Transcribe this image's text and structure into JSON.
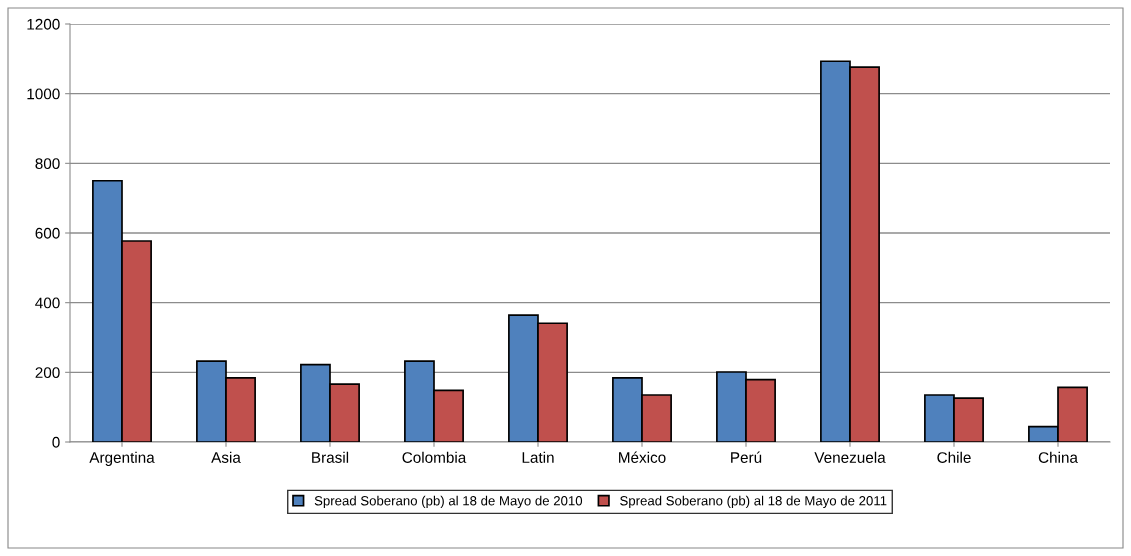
{
  "chart_data": {
    "type": "bar",
    "categories": [
      "Argentina",
      "Asia",
      "Brasil",
      "Colombia",
      "Latin",
      "México",
      "Perú",
      "Venezuela",
      "Chile",
      "China"
    ],
    "series": [
      {
        "name": "Spread Soberano (pb) al 18 de Mayo de 2010",
        "color": "#4f81bd",
        "values": [
          750,
          232,
          222,
          232,
          364,
          184,
          201,
          1093,
          135,
          44
        ]
      },
      {
        "name": "Spread Soberano (pb) al 18 de Mayo de 2011",
        "color": "#c0504d",
        "values": [
          577,
          184,
          166,
          148,
          341,
          135,
          179,
          1076,
          126,
          157
        ]
      }
    ],
    "ylim": [
      0,
      1200
    ],
    "yticks": [
      0,
      200,
      400,
      600,
      800,
      1000,
      1200
    ],
    "grid": "y",
    "legend": "bottom"
  }
}
